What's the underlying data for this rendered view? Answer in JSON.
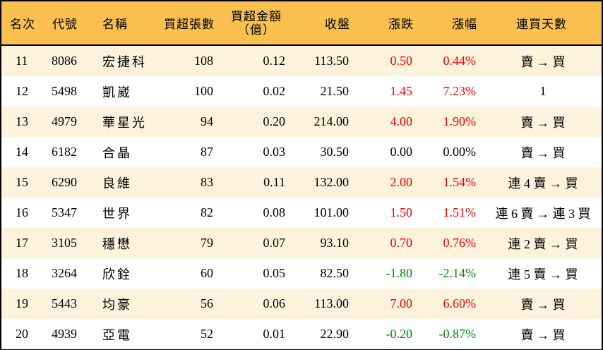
{
  "table": {
    "headers": {
      "rank": "名次",
      "code": "代號",
      "name": "名稱",
      "net_buy_lots": "買超張數",
      "net_buy_amount_line1": "買超金額",
      "net_buy_amount_line2": "（億）",
      "close": "收盤",
      "change": "漲跌",
      "change_pct": "漲幅",
      "consecutive_days": "連買天數"
    },
    "colors": {
      "header_bg": "#f9c04f",
      "row_odd_bg": "#fdf3dd",
      "row_even_bg": "#ffffff",
      "up": "#ee0000",
      "down": "#008800",
      "border": "#000000"
    },
    "rows": [
      {
        "rank": "11",
        "code": "8086",
        "name": "宏捷科",
        "lots": "108",
        "amount": "0.12",
        "close": "113.50",
        "change": "0.50",
        "pct": "0.44%",
        "trend": "up",
        "days": "賣 → 買"
      },
      {
        "rank": "12",
        "code": "5498",
        "name": "凱崴",
        "lots": "100",
        "amount": "0.02",
        "close": "21.50",
        "change": "1.45",
        "pct": "7.23%",
        "trend": "up",
        "days": "1"
      },
      {
        "rank": "13",
        "code": "4979",
        "name": "華星光",
        "lots": "94",
        "amount": "0.20",
        "close": "214.00",
        "change": "4.00",
        "pct": "1.90%",
        "trend": "up",
        "days": "賣 → 買"
      },
      {
        "rank": "14",
        "code": "6182",
        "name": "合晶",
        "lots": "87",
        "amount": "0.03",
        "close": "30.50",
        "change": "0.00",
        "pct": "0.00%",
        "trend": "flat",
        "days": "賣 → 買"
      },
      {
        "rank": "15",
        "code": "6290",
        "name": "良維",
        "lots": "83",
        "amount": "0.11",
        "close": "132.00",
        "change": "2.00",
        "pct": "1.54%",
        "trend": "up",
        "days": "連 4 賣 → 買"
      },
      {
        "rank": "16",
        "code": "5347",
        "name": "世界",
        "lots": "82",
        "amount": "0.08",
        "close": "101.00",
        "change": "1.50",
        "pct": "1.51%",
        "trend": "up",
        "days": "連 6 賣 → 連 3 買"
      },
      {
        "rank": "17",
        "code": "3105",
        "name": "穩懋",
        "lots": "79",
        "amount": "0.07",
        "close": "93.10",
        "change": "0.70",
        "pct": "0.76%",
        "trend": "up",
        "days": "連 2 賣 → 買"
      },
      {
        "rank": "18",
        "code": "3264",
        "name": "欣銓",
        "lots": "60",
        "amount": "0.05",
        "close": "82.50",
        "change": "-1.80",
        "pct": "-2.14%",
        "trend": "down",
        "days": "連 5 賣 → 買"
      },
      {
        "rank": "19",
        "code": "5443",
        "name": "均豪",
        "lots": "56",
        "amount": "0.06",
        "close": "113.00",
        "change": "7.00",
        "pct": "6.60%",
        "trend": "up",
        "days": "賣 → 買"
      },
      {
        "rank": "20",
        "code": "4939",
        "name": "亞電",
        "lots": "52",
        "amount": "0.01",
        "close": "22.90",
        "change": "-0.20",
        "pct": "-0.87%",
        "trend": "down",
        "days": "賣 → 買"
      }
    ]
  }
}
